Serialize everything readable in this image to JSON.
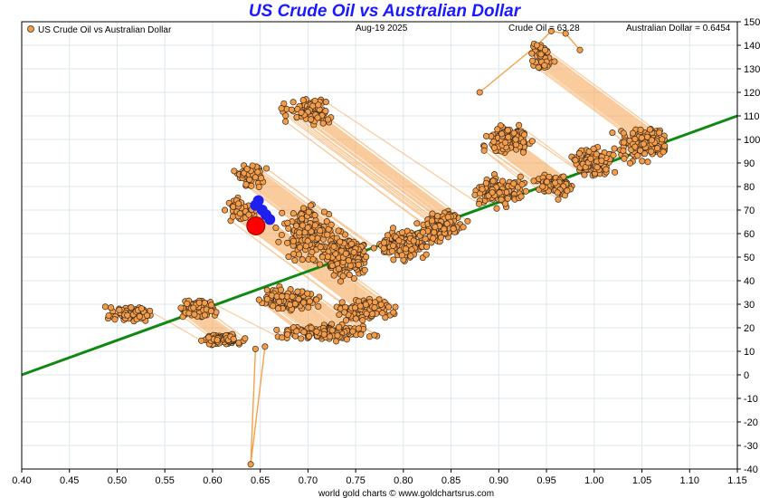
{
  "header": {
    "title": "US Crude Oil vs Australian Dollar",
    "legend_label": "US Crude Oil vs Australian Dollar",
    "date": "Aug-19  2025",
    "crude_readout": "Crude Oil = 63.28",
    "aud_readout": "Australian Dollar = 0.6454"
  },
  "footer": {
    "credit": "world gold charts © www.goldchartsrus.com"
  },
  "colors": {
    "title": "#1a1aff",
    "point_fill": "#f39c4a",
    "point_stroke": "#3a2a1a",
    "path_line": "#f5a04a",
    "trend_line": "#118811",
    "recent_points": "#1f1fee",
    "current_point": "#ff0000",
    "grid": "#dde8ee"
  },
  "chart_data": {
    "type": "scatter",
    "title": "US Crude Oil vs Australian Dollar",
    "xlabel": "",
    "ylabel": "",
    "xlim": [
      0.4,
      1.15
    ],
    "ylim": [
      -40,
      150
    ],
    "grid": true,
    "legend_position": "top-left",
    "x_ticks": [
      "0.40",
      "0.45",
      "0.50",
      "0.55",
      "0.60",
      "0.65",
      "0.70",
      "0.75",
      "0.80",
      "0.85",
      "0.90",
      "0.95",
      "1.00",
      "1.05",
      "1.10",
      "1.15"
    ],
    "y_ticks": [
      "-40",
      "-30",
      "-20",
      "-10",
      "0",
      "10",
      "20",
      "30",
      "40",
      "50",
      "60",
      "70",
      "80",
      "90",
      "100",
      "110",
      "120",
      "130",
      "140",
      "150"
    ],
    "series": [
      {
        "name": "US Crude Oil vs Australian Dollar",
        "style": "connected-markers",
        "clusters": [
          {
            "center": [
              0.515,
              26
            ],
            "spread": [
              0.03,
              4
            ],
            "count": 110
          },
          {
            "center": [
              0.585,
              28
            ],
            "spread": [
              0.025,
              5
            ],
            "count": 110
          },
          {
            "center": [
              0.61,
              15
            ],
            "spread": [
              0.03,
              3
            ],
            "count": 100
          },
          {
            "center": [
              0.72,
              18
            ],
            "spread": [
              0.06,
              4
            ],
            "count": 140
          },
          {
            "center": [
              0.68,
              32
            ],
            "spread": [
              0.04,
              6
            ],
            "count": 120
          },
          {
            "center": [
              0.76,
              28
            ],
            "spread": [
              0.04,
              6
            ],
            "count": 100
          },
          {
            "center": [
              0.74,
              50
            ],
            "spread": [
              0.03,
              12
            ],
            "count": 200
          },
          {
            "center": [
              0.8,
              55
            ],
            "spread": [
              0.035,
              8
            ],
            "count": 150
          },
          {
            "center": [
              0.7,
              60
            ],
            "spread": [
              0.04,
              15
            ],
            "count": 160
          },
          {
            "center": [
              0.84,
              63
            ],
            "spread": [
              0.03,
              8
            ],
            "count": 120
          },
          {
            "center": [
              0.9,
              78
            ],
            "spread": [
              0.035,
              8
            ],
            "count": 130
          },
          {
            "center": [
              0.91,
              100
            ],
            "spread": [
              0.03,
              8
            ],
            "count": 120
          },
          {
            "center": [
              0.96,
              80
            ],
            "spread": [
              0.03,
              6
            ],
            "count": 80
          },
          {
            "center": [
              1.0,
              90
            ],
            "spread": [
              0.03,
              8
            ],
            "count": 130
          },
          {
            "center": [
              1.05,
              98
            ],
            "spread": [
              0.035,
              10
            ],
            "count": 150
          },
          {
            "center": [
              0.7,
              112
            ],
            "spread": [
              0.035,
              8
            ],
            "count": 90
          },
          {
            "center": [
              0.64,
              85
            ],
            "spread": [
              0.02,
              6
            ],
            "count": 70
          },
          {
            "center": [
              0.63,
              70
            ],
            "spread": [
              0.02,
              6
            ],
            "count": 60
          },
          {
            "center": [
              0.945,
              135
            ],
            "spread": [
              0.015,
              7
            ],
            "count": 45
          }
        ],
        "excursions": [
          [
            0.645,
            11
          ],
          [
            0.64,
            -38
          ],
          [
            0.655,
            12
          ],
          [
            0.88,
            120
          ],
          [
            0.94,
            140
          ],
          [
            0.955,
            146
          ],
          [
            0.97,
            145
          ],
          [
            0.985,
            138
          ]
        ]
      },
      {
        "name": "recent",
        "points": [
          [
            0.648,
            74
          ],
          [
            0.652,
            70
          ],
          [
            0.656,
            68
          ],
          [
            0.66,
            66
          ],
          [
            0.645,
            72
          ]
        ]
      },
      {
        "name": "current",
        "points": [
          [
            0.6454,
            63.28
          ]
        ]
      },
      {
        "name": "trend",
        "style": "line",
        "points": [
          [
            0.4,
            0
          ],
          [
            1.15,
            110
          ]
        ]
      }
    ]
  }
}
